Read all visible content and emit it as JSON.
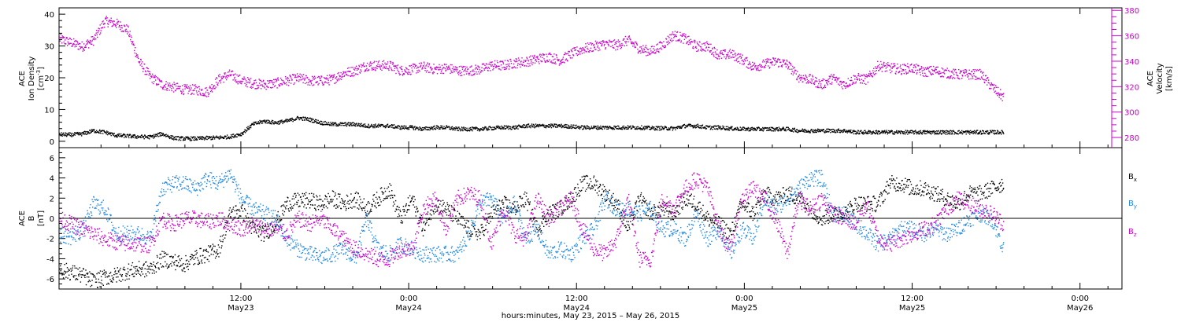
{
  "chart_data": [
    {
      "type": "scatter",
      "panel": "top",
      "ylabel_left": {
        "line1": "ACE",
        "line2": "Ion Density",
        "unit_pre": "[cm",
        "unit_sup": "-3",
        "unit_post": "]"
      },
      "ylabel_right": {
        "line1": "ACE",
        "line2": "Velocity",
        "unit": "[km/s]"
      },
      "left_ylim": [
        -2,
        42
      ],
      "left_yticks": [
        0,
        10,
        20,
        30,
        40
      ],
      "right_ylim": [
        272,
        382
      ],
      "right_yticks": [
        280,
        300,
        320,
        340,
        360,
        380
      ],
      "grid": false,
      "series": [
        {
          "axis": "left",
          "color": "#000000",
          "x": [
            0,
            1,
            2,
            3,
            4,
            5,
            6,
            7,
            8,
            9,
            10,
            11,
            12,
            13,
            14,
            15,
            16,
            17,
            18,
            19,
            20,
            21,
            22,
            23,
            24,
            25,
            26,
            27,
            28,
            29,
            30,
            31,
            32,
            33,
            34,
            35,
            36,
            37,
            38,
            39,
            40,
            41,
            42,
            43,
            44,
            45,
            46,
            47,
            48,
            49,
            50,
            51,
            52,
            53,
            54,
            55,
            56,
            57,
            58,
            59,
            60,
            61,
            62,
            63,
            64,
            65,
            66,
            67,
            68,
            69,
            70,
            71,
            72,
            73,
            74,
            75,
            76,
            77,
            78,
            79,
            80,
            81,
            82,
            83
          ],
          "values": [
            2.3,
            2.2,
            2.5,
            3.5,
            3.0,
            2.0,
            1.8,
            1.6,
            1.5,
            2.5,
            1.2,
            1.0,
            1.0,
            1.2,
            1.3,
            1.6,
            2.5,
            5.5,
            6.5,
            6.0,
            6.5,
            7.5,
            7.0,
            6.0,
            5.5,
            5.5,
            5.5,
            5.0,
            5.0,
            5.0,
            4.5,
            4.5,
            4.0,
            4.5,
            4.5,
            4.0,
            4.0,
            4.0,
            4.3,
            4.5,
            4.5,
            5.0,
            5.0,
            5.0,
            5.0,
            4.8,
            4.5,
            4.5,
            4.5,
            4.5,
            4.5,
            4.5,
            4.3,
            4.3,
            4.2,
            5.0,
            5.0,
            4.5,
            4.5,
            4.2,
            4.0,
            4.0,
            4.0,
            4.0,
            4.0,
            3.5,
            3.5,
            3.5,
            3.5,
            3.5,
            3.0,
            3.0,
            3.0,
            3.0,
            3.0,
            3.0,
            3.0,
            3.0,
            3.0,
            3.0,
            3.0,
            3.0,
            3.0,
            3.0
          ]
        },
        {
          "axis": "right",
          "color": "#cc00cc",
          "x": [
            0,
            1,
            2,
            3,
            4,
            5,
            6,
            7,
            8,
            9,
            10,
            11,
            12,
            13,
            14,
            15,
            16,
            17,
            18,
            19,
            20,
            21,
            22,
            23,
            24,
            25,
            26,
            27,
            28,
            29,
            30,
            31,
            32,
            33,
            34,
            35,
            36,
            37,
            38,
            39,
            40,
            41,
            42,
            43,
            44,
            45,
            46,
            47,
            48,
            49,
            50,
            51,
            52,
            53,
            54,
            55,
            56,
            57,
            58,
            59,
            60,
            61,
            62,
            63,
            64,
            65,
            66,
            67,
            68,
            69,
            70,
            71,
            72,
            73,
            74,
            75,
            76,
            77,
            78,
            79,
            80,
            81,
            82,
            83
          ],
          "values": [
            358,
            355,
            352,
            357,
            372,
            370,
            365,
            340,
            328,
            322,
            320,
            318,
            318,
            316,
            326,
            330,
            325,
            323,
            322,
            323,
            325,
            327,
            325,
            325,
            326,
            331,
            333,
            337,
            337,
            337,
            333,
            334,
            336,
            334,
            335,
            333,
            333,
            334,
            337,
            337,
            339,
            340,
            342,
            344,
            341,
            346,
            350,
            352,
            354,
            353,
            357,
            350,
            348,
            353,
            361,
            358,
            352,
            352,
            345,
            346,
            342,
            336,
            338,
            340,
            338,
            328,
            326,
            322,
            327,
            322,
            327,
            326,
            337,
            335,
            334,
            335,
            332,
            333,
            331,
            330,
            330,
            330,
            320,
            312
          ]
        }
      ]
    },
    {
      "type": "scatter",
      "panel": "bottom",
      "ylabel": {
        "line1": "ACE",
        "line2": "B",
        "unit": "[nT]"
      },
      "ylim": [
        -7,
        7
      ],
      "yticks": [
        -6,
        -4,
        -2,
        0,
        2,
        4,
        6
      ],
      "zero_line": true,
      "grid": false,
      "series": [
        {
          "name_main": "B",
          "name_sub": "x",
          "color": "#000000",
          "x": [
            0,
            1,
            2,
            3,
            4,
            5,
            6,
            7,
            8,
            9,
            10,
            11,
            12,
            13,
            14,
            15,
            16,
            17,
            18,
            19,
            20,
            21,
            22,
            23,
            24,
            25,
            26,
            27,
            28,
            29,
            30,
            31,
            32,
            33,
            34,
            35,
            36,
            37,
            38,
            39,
            40,
            41,
            42,
            43,
            44,
            45,
            46,
            47,
            48,
            49,
            50,
            51,
            52,
            53,
            54,
            55,
            56,
            57,
            58,
            59,
            60,
            61,
            62,
            63,
            64,
            65,
            66,
            67,
            68,
            69,
            70,
            71,
            72,
            73,
            74,
            75,
            76,
            77,
            78,
            79,
            80,
            81,
            82,
            83
          ],
          "values": [
            -5.0,
            -5.3,
            -5.6,
            -6.2,
            -5.8,
            -5.6,
            -5.2,
            -5.0,
            -5.0,
            -4.0,
            -4.2,
            -4.5,
            -3.8,
            -3.5,
            -3.0,
            0.5,
            0.8,
            -1.0,
            -1.5,
            -0.5,
            1.5,
            1.8,
            1.8,
            1.5,
            2.0,
            1.5,
            2.0,
            1.0,
            2.0,
            3.0,
            0.0,
            2.0,
            -1.0,
            1.5,
            1.0,
            0.0,
            -1.0,
            -1.5,
            0.5,
            1.5,
            1.0,
            2.0,
            -1.0,
            0.5,
            1.0,
            2.0,
            3.5,
            3.5,
            2.5,
            1.5,
            -1.0,
            2.0,
            0.5,
            1.0,
            0.5,
            2.0,
            1.5,
            0.0,
            -0.5,
            -1.5,
            1.5,
            0.5,
            2.5,
            2.0,
            2.5,
            2.0,
            1.0,
            0.0,
            0.5,
            0.5,
            1.5,
            1.5,
            1.5,
            3.5,
            3.5,
            3.0,
            3.0,
            2.5,
            2.0,
            1.5,
            2.5,
            2.5,
            3.0,
            3.5
          ]
        },
        {
          "name_main": "B",
          "name_sub": "y",
          "color": "#1e88e5",
          "x": [
            0,
            1,
            2,
            3,
            4,
            5,
            6,
            7,
            8,
            9,
            10,
            11,
            12,
            13,
            14,
            15,
            16,
            17,
            18,
            19,
            20,
            21,
            22,
            23,
            24,
            25,
            26,
            27,
            28,
            29,
            30,
            31,
            32,
            33,
            34,
            35,
            36,
            37,
            38,
            39,
            40,
            41,
            42,
            43,
            44,
            45,
            46,
            47,
            48,
            49,
            50,
            51,
            52,
            53,
            54,
            55,
            56,
            57,
            58,
            59,
            60,
            61,
            62,
            63,
            64,
            65,
            66,
            67,
            68,
            69,
            70,
            71,
            72,
            73,
            74,
            75,
            76,
            77,
            78,
            79,
            80,
            81,
            82,
            83
          ],
          "values": [
            -1.5,
            -1.8,
            -1.2,
            1.5,
            1.0,
            -1.5,
            -1.5,
            -1.5,
            -2.0,
            3.0,
            3.5,
            3.5,
            3.0,
            4.0,
            3.5,
            4.5,
            2.0,
            1.0,
            0.5,
            0.0,
            -2.0,
            -3.0,
            -3.5,
            -3.8,
            -3.5,
            -3.0,
            -4.0,
            0.0,
            -3.0,
            -3.5,
            -2.5,
            -3.0,
            -3.5,
            -3.5,
            -3.5,
            -3.5,
            -1.5,
            1.5,
            2.0,
            0.0,
            1.5,
            -2.0,
            -1.0,
            -3.5,
            -3.0,
            -3.5,
            -2.0,
            -1.0,
            2.0,
            1.0,
            1.0,
            0.5,
            1.0,
            -1.0,
            -1.0,
            -2.0,
            0.5,
            -2.0,
            -1.0,
            -3.5,
            -1.0,
            -2.0,
            2.0,
            1.0,
            2.0,
            3.0,
            4.0,
            4.0,
            0.5,
            0.5,
            -0.5,
            -1.5,
            -2.5,
            -2.0,
            -1.0,
            -1.0,
            -1.5,
            -1.0,
            -1.5,
            -1.0,
            0.0,
            0.5,
            0.0,
            -3.0
          ]
        },
        {
          "name_main": "B",
          "name_sub": "z",
          "color": "#cc00cc",
          "x": [
            0,
            1,
            2,
            3,
            4,
            5,
            6,
            7,
            8,
            9,
            10,
            11,
            12,
            13,
            14,
            15,
            16,
            17,
            18,
            19,
            20,
            21,
            22,
            23,
            24,
            25,
            26,
            27,
            28,
            29,
            30,
            31,
            32,
            33,
            34,
            35,
            36,
            37,
            38,
            39,
            40,
            41,
            42,
            43,
            44,
            45,
            46,
            47,
            48,
            49,
            50,
            51,
            52,
            53,
            54,
            55,
            56,
            57,
            58,
            59,
            60,
            61,
            62,
            63,
            64,
            65,
            66,
            67,
            68,
            69,
            70,
            71,
            72,
            73,
            74,
            75,
            76,
            77,
            78,
            79,
            80,
            81,
            82,
            83
          ],
          "values": [
            0.0,
            -0.5,
            -1.0,
            -1.5,
            -2.0,
            -2.3,
            -2.5,
            -2.5,
            -2.6,
            0.0,
            -0.5,
            0.0,
            0.0,
            -0.3,
            0.0,
            -0.5,
            -1.0,
            -0.5,
            -1.0,
            -1.0,
            -1.5,
            0.0,
            -0.5,
            0.0,
            -1.0,
            -2.0,
            -3.0,
            -3.5,
            -4.0,
            -4.0,
            -3.0,
            -3.0,
            1.0,
            2.0,
            -1.0,
            2.0,
            2.5,
            2.0,
            -2.5,
            1.0,
            -1.5,
            -2.0,
            2.0,
            0.0,
            1.0,
            2.0,
            -1.0,
            -3.0,
            -3.5,
            -2.0,
            2.0,
            -4.0,
            -4.0,
            2.0,
            1.0,
            3.0,
            4.0,
            3.0,
            -1.0,
            -3.0,
            2.0,
            3.0,
            2.0,
            0.0,
            -3.5,
            2.0,
            1.0,
            2.0,
            0.5,
            0.0,
            -0.5,
            1.5,
            -2.0,
            -2.5,
            -2.0,
            -1.5,
            -1.0,
            -0.5,
            1.0,
            2.0,
            1.5,
            1.0,
            0.5,
            -0.5
          ]
        }
      ]
    }
  ],
  "x_axis": {
    "tick_labels": [
      {
        "time": "12:00",
        "date": "May23"
      },
      {
        "time": "0:00",
        "date": "May24"
      },
      {
        "time": "12:00",
        "date": "May24"
      },
      {
        "time": "0:00",
        "date": "May25"
      },
      {
        "time": "12:00",
        "date": "May25"
      },
      {
        "time": "0:00",
        "date": "May26"
      }
    ],
    "tick_hours": [
      12,
      24,
      36,
      48,
      60,
      72
    ],
    "xlim_hours": [
      -1.0,
      75.0
    ],
    "data_end_hour": 66.5,
    "xlabel": "hours:minutes, May 23, 2015 – May 26, 2015"
  }
}
